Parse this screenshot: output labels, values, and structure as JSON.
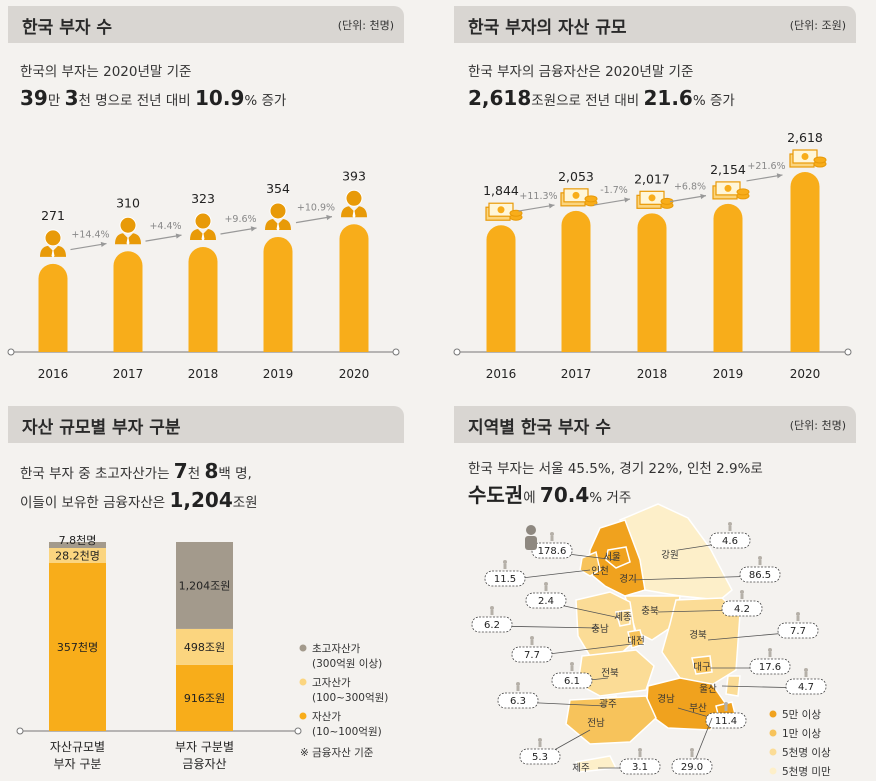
{
  "panel1": {
    "title": "한국 부자 수",
    "unit": "(단위: 천명)",
    "line1": "한국의 부자는 2020년말 기준",
    "line2_a": "39",
    "line2_b": "만 ",
    "line2_c": "3",
    "line2_d": "천 명으로 전년 대비 ",
    "line2_e": "10.9",
    "line2_f": "% 증가"
  },
  "panel2": {
    "title": "한국 부자의 자산 규모",
    "unit": "(단위: 조원)",
    "line1": "한국 부자의 금융자산은 2020년말 기준",
    "line2_a": "2,618",
    "line2_b": "조원으로 전년 대비 ",
    "line2_c": "21.6",
    "line2_d": "% 증가"
  },
  "panel3": {
    "title": "자산 규모별 부자 구분",
    "line1_a": "한국 부자 중 초고자산가는 ",
    "line1_b": "7",
    "line1_c": "천 ",
    "line1_d": "8",
    "line1_e": "백 명,",
    "line2_a": "이들이 보유한 금융자산은 ",
    "line2_b": "1,204",
    "line2_c": "조원",
    "legend": [
      {
        "label": "초고자산가",
        "sub": "(300억원 이상)",
        "color": "#a39a8c"
      },
      {
        "label": "고자산가",
        "sub": "(100~300억원)",
        "color": "#fbd57f"
      },
      {
        "label": "자산가",
        "sub": "(10~100억원)",
        "color": "#f8ad1a"
      }
    ],
    "note": "※ 금융자산 기준"
  },
  "panel4": {
    "title": "지역별 한국 부자 수",
    "unit": "(단위: 천명)",
    "line1": "한국 부자는 서울 45.5%, 경기 22%, 인천 2.9%로",
    "line2_a": "수도권",
    "line2_b": "에 ",
    "line2_c": "70.4",
    "line2_d": "% 거주",
    "legend": [
      {
        "label": "5만 이상",
        "color": "#f0a21e"
      },
      {
        "label": "1만 이상",
        "color": "#f7c35b"
      },
      {
        "label": "5천명 이상",
        "color": "#fbdc96"
      },
      {
        "label": "5천명 미만",
        "color": "#fdefc9"
      }
    ],
    "regions": [
      {
        "name": "서울",
        "value": "178.6"
      },
      {
        "name": "인천",
        "value": "11.5"
      },
      {
        "name": "경기",
        "value": "86.5"
      },
      {
        "name": "강원",
        "value": "4.6"
      },
      {
        "name": "세종",
        "value": "2.4"
      },
      {
        "name": "충북",
        "value": "4.2"
      },
      {
        "name": "충남",
        "value": "6.2"
      },
      {
        "name": "대전",
        "value": "7.7"
      },
      {
        "name": "경북",
        "value": "7.7"
      },
      {
        "name": "대구",
        "value": "17.6"
      },
      {
        "name": "전북",
        "value": "6.1"
      },
      {
        "name": "울산",
        "value": "4.7"
      },
      {
        "name": "광주",
        "value": "6.3"
      },
      {
        "name": "경남",
        "value": "11.4"
      },
      {
        "name": "부산",
        "value": "29.0"
      },
      {
        "name": "전남",
        "value": "5.3"
      },
      {
        "name": "제주",
        "value": "3.1"
      }
    ]
  },
  "colors": {
    "accent": "#f8ad1a",
    "accent_dark": "#e89a08",
    "header_bg": "#d9d6d2",
    "arrow": "#999999"
  },
  "chart_data": [
    {
      "type": "bar",
      "title": "한국 부자 수",
      "unit": "(단위: 천명)",
      "categories": [
        "2016",
        "2017",
        "2018",
        "2019",
        "2020"
      ],
      "values": [
        271,
        310,
        323,
        354,
        393
      ],
      "value_labels": [
        "271",
        "310",
        "323",
        "354",
        "393"
      ],
      "growth_labels": [
        "+14.4%",
        "+4.4%",
        "+9.6%",
        "+10.9%"
      ],
      "ylim": [
        0,
        400
      ]
    },
    {
      "type": "bar",
      "title": "한국 부자의 자산 규모",
      "unit": "(단위: 조원)",
      "categories": [
        "2016",
        "2017",
        "2018",
        "2019",
        "2020"
      ],
      "values": [
        1844,
        2053,
        2017,
        2154,
        2618
      ],
      "value_labels": [
        "1,844",
        "2,053",
        "2,017",
        "2,154",
        "2,618"
      ],
      "growth_labels": [
        "+11.3%",
        "-1.7%",
        "+6.8%",
        "+21.6%"
      ],
      "ylim": [
        0,
        2618
      ]
    },
    {
      "type": "bar",
      "stacked": true,
      "title": "자산 규모별 부자 구분",
      "categories": [
        "자산규모별\n부자 구분",
        "부자 구분별\n금융자산"
      ],
      "category_lines": [
        [
          "자산규모별",
          "부자 구분"
        ],
        [
          "부자 구분별",
          "금융자산"
        ]
      ],
      "series": [
        {
          "name": "자산가",
          "values": [
            357,
            916
          ],
          "labels": [
            "357천명",
            "916조원"
          ],
          "color": "#f8ad1a"
        },
        {
          "name": "고자산가",
          "values": [
            28.2,
            498
          ],
          "labels": [
            "28.2천명",
            "498조원"
          ],
          "color": "#fbd57f"
        },
        {
          "name": "초고자산가",
          "values": [
            7.8,
            1204
          ],
          "labels": [
            "7.8천명",
            "1,204조원"
          ],
          "color": "#a39a8c"
        }
      ]
    }
  ]
}
